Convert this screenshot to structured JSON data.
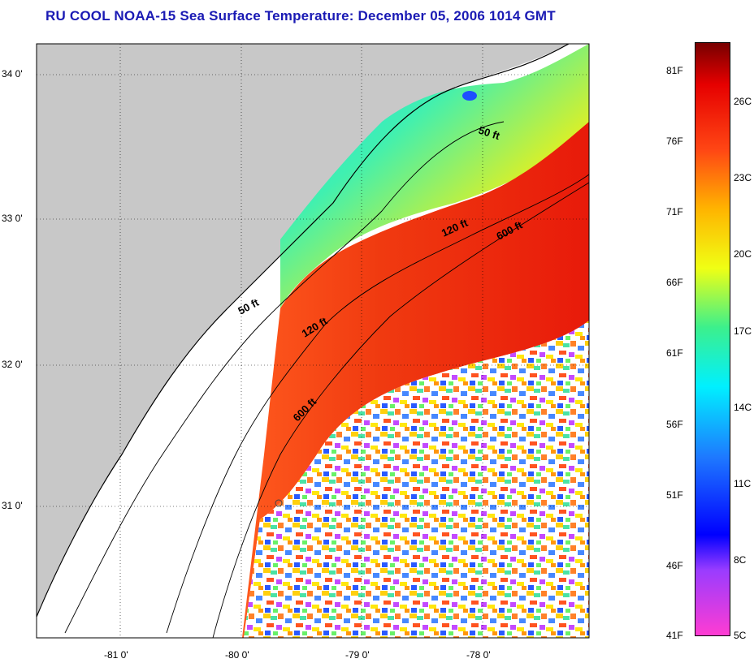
{
  "title": "RU COOL  NOAA-15  Sea Surface Temperature:  December 05, 2006 1014 GMT",
  "map": {
    "lon_ticks": [
      "-81 0'",
      "-80 0'",
      "-79 0'",
      "-78 0'"
    ],
    "lat_ticks": [
      "34 0'",
      "33 0'",
      "32 0'",
      "31 0'"
    ],
    "contours": [
      {
        "label": "50 ft"
      },
      {
        "label": "50 ft"
      },
      {
        "label": "120 ft"
      },
      {
        "label": "120 ft"
      },
      {
        "label": "600 ft"
      },
      {
        "label": "600 ft"
      }
    ],
    "colors": {
      "land": "#c8c8c8",
      "cloud": "#ffffff",
      "coast": "#000000",
      "title": "#1a1ab4"
    }
  },
  "colorbar": {
    "fahrenheit": [
      "81F",
      "76F",
      "71F",
      "66F",
      "61F",
      "56F",
      "51F",
      "46F",
      "41F"
    ],
    "celsius": [
      "26C",
      "23C",
      "20C",
      "17C",
      "14C",
      "11C",
      "8C",
      "5C"
    ],
    "range_f": [
      41,
      83
    ]
  }
}
